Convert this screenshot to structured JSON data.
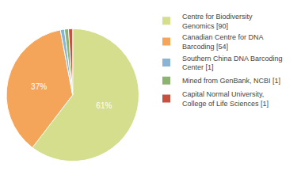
{
  "chart_data": {
    "type": "pie",
    "categories": [
      "Centre for Biodiversity\nGenomics [90]",
      "Canadian Centre for DNA\nBarcoding [54]",
      "Southern China DNA Barcoding\nCenter [1]",
      "Mined from GenBank, NCBI [1]",
      "Capital Normal University,\nCollege of Life Sciences [1]"
    ],
    "values": [
      61,
      37,
      1,
      1,
      1
    ],
    "value_labels": [
      "61%",
      "37%",
      null,
      null,
      null
    ],
    "colors": [
      "#d4de8c",
      "#f5a55a",
      "#8ab4d4",
      "#8cb46e",
      "#c85040"
    ],
    "data_labels": true,
    "legend": "right"
  }
}
